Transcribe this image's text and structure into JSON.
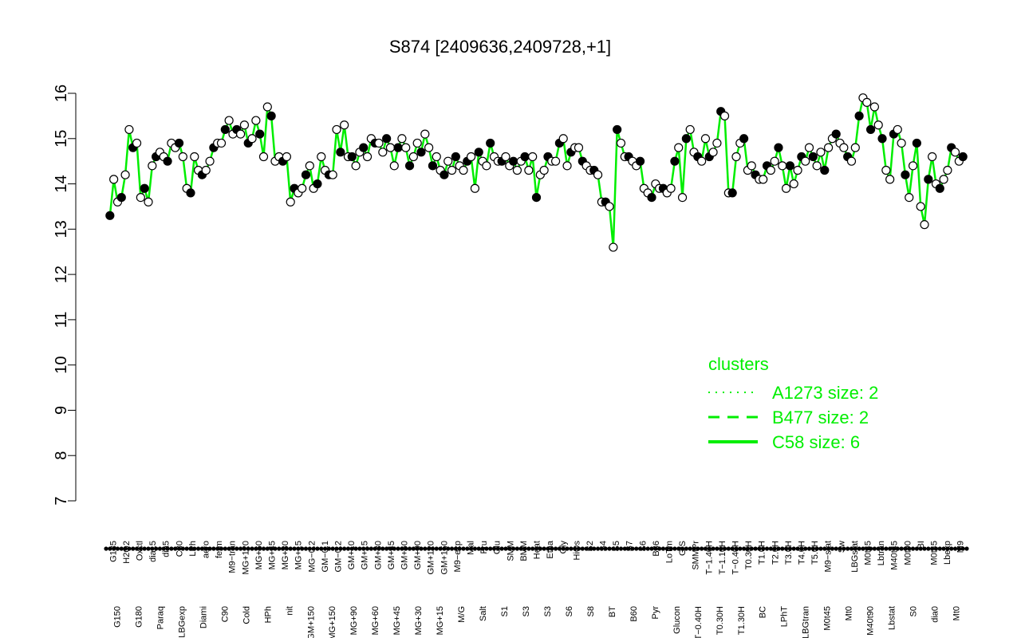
{
  "chart_data": {
    "type": "line",
    "title": "S874 [2409636,2409728,+1]",
    "xlabel": "",
    "ylabel": "",
    "ylim": [
      7,
      16
    ],
    "yticks": [
      7,
      8,
      9,
      10,
      11,
      12,
      13,
      14,
      15,
      16
    ],
    "series_color": "#00ee00",
    "legend": {
      "title": "clusters",
      "placement": "bottom-right",
      "entries": [
        {
          "label": "A1273 size: 2",
          "style": "dotted"
        },
        {
          "label": "B477 size: 2",
          "style": "dashed"
        },
        {
          "label": "C58 size: 6",
          "style": "solid"
        }
      ]
    },
    "x_labels_top": [
      "G135",
      "H2O2",
      "Oxctl",
      "dia15",
      "dia5",
      "C30",
      "LPh",
      "aero",
      "ferm",
      "M9−tran",
      "MG+120",
      "MG+60",
      "MG+45",
      "MG+30",
      "MG+15",
      "MG−0.2",
      "GM−0.1",
      "GM−0.2",
      "GM+10",
      "GM+15",
      "GM+30",
      "GM+45",
      "GM+60",
      "GM+90",
      "GM+120",
      "GM+150",
      "M9−exp",
      "Mal",
      "Fru",
      "Glu",
      "SMM",
      "BMM",
      "Heat",
      "Etha",
      "Gly",
      "HiOs",
      "S2",
      "S4",
      "S5",
      "S7",
      "S6",
      "B36",
      "LoTm",
      "G/S",
      "SMMPr",
      "T−1.40H",
      "T−1.10H",
      "T−0.40H",
      "T0.30H",
      "T1.0H",
      "T2.0H",
      "T3.0H",
      "T4.0H",
      "T5.0H",
      "M9−stat",
      "Sw",
      "LBGstat",
      "M0t45",
      "Lbtran",
      "M40t45",
      "M0t90",
      "BI",
      "M0t45",
      "Lbexp",
      "M9"
    ],
    "x_labels_bottom": [
      "G150",
      "G180",
      "Paraq",
      "LBGexp",
      "Diami",
      "C90",
      "Cold",
      "HPh",
      "nit",
      "GM+150",
      "MG+150",
      "MG+90",
      "MG+60",
      "MG+45",
      "MG+30",
      "MG+15",
      "M/G",
      "Salt",
      "S1",
      "S3",
      "S3",
      "S6",
      "S8",
      "BT",
      "B60",
      "Pyr",
      "Glucon",
      "T−0.40H",
      "T0.30H",
      "T1.30H",
      "BC",
      "LPhT",
      "LBGtran",
      "M0t45",
      "Mt0",
      "M40t90",
      "Lbstat",
      "S0",
      "dia0",
      "Mt0"
    ],
    "points": [
      [
        2,
        13.3
      ],
      [
        3,
        14.1
      ],
      [
        4,
        13.6
      ],
      [
        5,
        13.7
      ],
      [
        6,
        14.2
      ],
      [
        7,
        15.2
      ],
      [
        8,
        14.8
      ],
      [
        9,
        14.9
      ],
      [
        10,
        13.7
      ],
      [
        11,
        13.9
      ],
      [
        12,
        13.6
      ],
      [
        13,
        14.4
      ],
      [
        14,
        14.6
      ],
      [
        15,
        14.7
      ],
      [
        16,
        14.6
      ],
      [
        17,
        14.5
      ],
      [
        18,
        14.9
      ],
      [
        19,
        14.8
      ],
      [
        20,
        14.9
      ],
      [
        21,
        14.6
      ],
      [
        22,
        13.9
      ],
      [
        23,
        13.8
      ],
      [
        24,
        14.6
      ],
      [
        25,
        14.3
      ],
      [
        26,
        14.2
      ],
      [
        27,
        14.3
      ],
      [
        28,
        14.5
      ],
      [
        29,
        14.8
      ],
      [
        30,
        14.9
      ],
      [
        31,
        14.9
      ],
      [
        32,
        15.2
      ],
      [
        33,
        15.4
      ],
      [
        34,
        15.1
      ],
      [
        35,
        15.2
      ],
      [
        36,
        15.1
      ],
      [
        37,
        15.3
      ],
      [
        38,
        14.9
      ],
      [
        39,
        15.0
      ],
      [
        40,
        15.4
      ],
      [
        41,
        15.1
      ],
      [
        42,
        14.6
      ],
      [
        43,
        15.7
      ],
      [
        44,
        15.5
      ],
      [
        45,
        14.5
      ],
      [
        46,
        14.6
      ],
      [
        47,
        14.5
      ],
      [
        48,
        14.6
      ],
      [
        49,
        13.6
      ],
      [
        50,
        13.9
      ],
      [
        51,
        13.8
      ],
      [
        52,
        13.9
      ],
      [
        53,
        14.2
      ],
      [
        54,
        14.4
      ],
      [
        55,
        13.9
      ],
      [
        56,
        14.0
      ],
      [
        57,
        14.6
      ],
      [
        58,
        14.3
      ],
      [
        59,
        14.2
      ],
      [
        60,
        14.2
      ],
      [
        61,
        15.2
      ],
      [
        62,
        14.7
      ],
      [
        63,
        15.3
      ],
      [
        64,
        14.6
      ],
      [
        65,
        14.6
      ],
      [
        66,
        14.4
      ],
      [
        67,
        14.7
      ],
      [
        68,
        14.8
      ],
      [
        69,
        14.6
      ],
      [
        70,
        15.0
      ],
      [
        71,
        14.9
      ],
      [
        72,
        14.9
      ],
      [
        73,
        14.7
      ],
      [
        74,
        15.0
      ],
      [
        75,
        14.8
      ],
      [
        76,
        14.4
      ],
      [
        77,
        14.8
      ],
      [
        78,
        15.0
      ],
      [
        79,
        14.8
      ],
      [
        80,
        14.4
      ],
      [
        81,
        14.6
      ],
      [
        82,
        14.9
      ],
      [
        83,
        14.7
      ],
      [
        84,
        15.1
      ],
      [
        85,
        14.8
      ],
      [
        86,
        14.4
      ],
      [
        87,
        14.6
      ],
      [
        88,
        14.3
      ],
      [
        89,
        14.2
      ],
      [
        90,
        14.5
      ],
      [
        91,
        14.3
      ],
      [
        92,
        14.6
      ],
      [
        93,
        14.4
      ],
      [
        94,
        14.3
      ],
      [
        95,
        14.5
      ],
      [
        96,
        14.6
      ],
      [
        97,
        13.9
      ],
      [
        98,
        14.7
      ],
      [
        99,
        14.5
      ],
      [
        100,
        14.4
      ],
      [
        101,
        14.9
      ],
      [
        102,
        14.6
      ],
      [
        103,
        14.5
      ],
      [
        104,
        14.5
      ],
      [
        105,
        14.6
      ],
      [
        106,
        14.4
      ],
      [
        107,
        14.5
      ],
      [
        108,
        14.3
      ],
      [
        109,
        14.5
      ],
      [
        110,
        14.6
      ],
      [
        111,
        14.3
      ],
      [
        112,
        14.6
      ],
      [
        113,
        13.7
      ],
      [
        114,
        14.2
      ],
      [
        115,
        14.3
      ],
      [
        116,
        14.6
      ],
      [
        117,
        14.5
      ],
      [
        118,
        14.5
      ],
      [
        119,
        14.9
      ],
      [
        120,
        15.0
      ],
      [
        121,
        14.4
      ],
      [
        122,
        14.7
      ],
      [
        123,
        14.8
      ],
      [
        124,
        14.8
      ],
      [
        125,
        14.5
      ],
      [
        126,
        14.4
      ],
      [
        127,
        14.3
      ],
      [
        128,
        14.3
      ],
      [
        129,
        14.2
      ],
      [
        130,
        13.6
      ],
      [
        131,
        13.6
      ],
      [
        132,
        13.5
      ],
      [
        133,
        12.6
      ],
      [
        134,
        15.2
      ],
      [
        135,
        14.9
      ],
      [
        136,
        14.6
      ],
      [
        137,
        14.6
      ],
      [
        138,
        14.5
      ],
      [
        139,
        14.4
      ],
      [
        140,
        14.5
      ],
      [
        141,
        13.9
      ],
      [
        142,
        13.8
      ],
      [
        143,
        13.7
      ],
      [
        144,
        14.0
      ],
      [
        145,
        13.9
      ],
      [
        146,
        13.9
      ],
      [
        147,
        13.8
      ],
      [
        148,
        13.9
      ],
      [
        149,
        14.5
      ],
      [
        150,
        14.8
      ],
      [
        151,
        13.7
      ],
      [
        152,
        15.0
      ],
      [
        153,
        15.2
      ],
      [
        154,
        14.7
      ],
      [
        155,
        14.6
      ],
      [
        156,
        14.5
      ],
      [
        157,
        15.0
      ],
      [
        158,
        14.6
      ],
      [
        159,
        14.7
      ],
      [
        160,
        14.9
      ],
      [
        161,
        15.6
      ],
      [
        162,
        15.5
      ],
      [
        163,
        13.8
      ],
      [
        164,
        13.8
      ],
      [
        165,
        14.6
      ],
      [
        166,
        14.9
      ],
      [
        167,
        15.0
      ],
      [
        168,
        14.3
      ],
      [
        169,
        14.4
      ],
      [
        170,
        14.2
      ],
      [
        171,
        14.1
      ],
      [
        172,
        14.1
      ],
      [
        173,
        14.4
      ],
      [
        174,
        14.3
      ],
      [
        175,
        14.5
      ],
      [
        176,
        14.8
      ],
      [
        177,
        14.4
      ],
      [
        178,
        13.9
      ],
      [
        179,
        14.4
      ],
      [
        180,
        14.0
      ],
      [
        181,
        14.3
      ],
      [
        182,
        14.6
      ],
      [
        183,
        14.5
      ],
      [
        184,
        14.8
      ],
      [
        185,
        14.6
      ],
      [
        186,
        14.4
      ],
      [
        187,
        14.7
      ],
      [
        188,
        14.3
      ],
      [
        189,
        14.8
      ],
      [
        190,
        15.0
      ],
      [
        191,
        15.1
      ],
      [
        192,
        14.9
      ],
      [
        193,
        14.8
      ],
      [
        194,
        14.6
      ],
      [
        195,
        14.5
      ],
      [
        196,
        14.8
      ],
      [
        197,
        15.5
      ],
      [
        198,
        15.9
      ],
      [
        199,
        15.8
      ],
      [
        200,
        15.2
      ],
      [
        201,
        15.7
      ],
      [
        202,
        15.3
      ],
      [
        203,
        15.0
      ],
      [
        204,
        14.3
      ],
      [
        205,
        14.1
      ],
      [
        206,
        15.1
      ],
      [
        207,
        15.2
      ],
      [
        208,
        14.9
      ],
      [
        209,
        14.2
      ],
      [
        210,
        13.7
      ],
      [
        211,
        14.4
      ],
      [
        212,
        14.9
      ],
      [
        213,
        13.5
      ],
      [
        214,
        13.1
      ],
      [
        215,
        14.1
      ],
      [
        216,
        14.6
      ],
      [
        217,
        14.0
      ],
      [
        218,
        13.9
      ],
      [
        219,
        14.1
      ],
      [
        220,
        14.3
      ],
      [
        221,
        14.8
      ],
      [
        222,
        14.7
      ],
      [
        223,
        14.5
      ],
      [
        224,
        14.6
      ]
    ]
  }
}
